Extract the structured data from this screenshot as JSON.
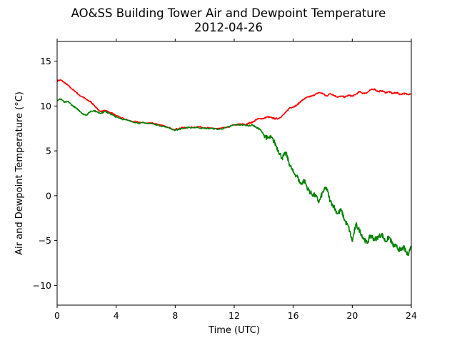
{
  "chart_data": {
    "type": "line",
    "title": "AO&SS Building Tower Air and Dewpoint Temperature",
    "subtitle": "2012-04-26",
    "xlabel": "Time (UTC)",
    "ylabel": "Air and Dewpoint Temperature (°C)",
    "xlim": [
      0,
      24
    ],
    "ylim": [
      -12.2,
      17.2
    ],
    "xticks": [
      0,
      4,
      8,
      12,
      16,
      20,
      24
    ],
    "yticks": [
      -10,
      -5,
      0,
      5,
      10,
      15
    ],
    "grid": false,
    "legend": "none",
    "series": [
      {
        "color": "#ff0000",
        "x": [
          0,
          0.25,
          0.5,
          0.75,
          1.0,
          1.25,
          1.5,
          1.75,
          2.0,
          2.25,
          2.5,
          2.75,
          3.0,
          3.25,
          3.5,
          3.75,
          4.0,
          4.5,
          5.0,
          5.5,
          6.0,
          6.5,
          7.0,
          7.5,
          8.0,
          8.5,
          9.0,
          9.5,
          10.0,
          10.5,
          11.0,
          11.5,
          12.0,
          12.5,
          12.8,
          13.0,
          13.25,
          13.5,
          13.75,
          14.0,
          14.25,
          14.5,
          14.75,
          15.0,
          15.25,
          15.5,
          15.75,
          16.0,
          16.25,
          16.5,
          16.75,
          17.0,
          17.25,
          17.5,
          17.75,
          18.0,
          18.25,
          18.5,
          18.75,
          19.0,
          19.25,
          19.5,
          19.75,
          20.0,
          20.25,
          20.5,
          20.75,
          21.0,
          21.25,
          21.5,
          21.75,
          22.0,
          22.25,
          22.5,
          22.75,
          23.0,
          23.25,
          23.5,
          23.75,
          24.0
        ],
        "y": [
          12.8,
          12.9,
          12.6,
          12.3,
          11.9,
          11.6,
          11.2,
          11.0,
          10.7,
          10.5,
          10.1,
          9.6,
          9.4,
          9.5,
          9.3,
          9.2,
          8.9,
          8.6,
          8.3,
          8.2,
          8.1,
          8.1,
          7.9,
          7.6,
          7.4,
          7.6,
          7.6,
          7.7,
          7.6,
          7.5,
          7.5,
          7.6,
          7.9,
          8.0,
          7.9,
          8.1,
          8.2,
          8.5,
          8.6,
          8.6,
          8.8,
          8.7,
          8.6,
          8.6,
          8.9,
          9.3,
          9.8,
          9.9,
          10.1,
          10.5,
          10.8,
          11.0,
          11.1,
          11.3,
          11.5,
          11.4,
          11.1,
          11.4,
          11.2,
          11.0,
          11.1,
          11.0,
          11.2,
          11.1,
          11.3,
          11.6,
          11.4,
          11.5,
          11.8,
          11.9,
          11.6,
          11.7,
          11.5,
          11.6,
          11.4,
          11.5,
          11.3,
          11.4,
          11.3,
          11.4
        ]
      },
      {
        "color": "#008000",
        "x": [
          0,
          0.25,
          0.5,
          0.75,
          1.0,
          1.25,
          1.5,
          1.75,
          2.0,
          2.25,
          2.5,
          2.75,
          3.0,
          3.25,
          3.5,
          3.75,
          4.0,
          4.5,
          5.0,
          5.5,
          6.0,
          6.5,
          7.0,
          7.5,
          8.0,
          8.5,
          9.0,
          9.5,
          10.0,
          10.5,
          11.0,
          11.5,
          12.0,
          12.5,
          13.0,
          13.25,
          13.5,
          13.75,
          14.0,
          14.25,
          14.5,
          14.75,
          15.0,
          15.25,
          15.5,
          15.75,
          16.0,
          16.25,
          16.5,
          16.75,
          17.0,
          17.25,
          17.5,
          17.75,
          18.0,
          18.25,
          18.5,
          18.75,
          19.0,
          19.25,
          19.5,
          19.75,
          20.0,
          20.25,
          20.5,
          20.75,
          21.0,
          21.25,
          21.5,
          21.75,
          22.0,
          22.25,
          22.5,
          22.75,
          23.0,
          23.25,
          23.5,
          23.75,
          24.0
        ],
        "y": [
          10.6,
          10.8,
          10.4,
          10.5,
          10.1,
          9.8,
          9.5,
          9.1,
          9.0,
          9.4,
          9.5,
          9.3,
          9.2,
          9.4,
          9.2,
          9.0,
          8.8,
          8.5,
          8.3,
          8.1,
          8.1,
          8.0,
          7.8,
          7.6,
          7.3,
          7.5,
          7.6,
          7.6,
          7.5,
          7.5,
          7.4,
          7.6,
          7.9,
          7.9,
          7.8,
          7.9,
          7.6,
          7.4,
          6.8,
          6.4,
          6.5,
          5.9,
          5.0,
          4.2,
          4.8,
          3.5,
          2.6,
          2.2,
          1.3,
          1.7,
          0.7,
          0.2,
          0.0,
          -0.7,
          0.4,
          0.9,
          -0.6,
          -1.2,
          -2.0,
          -1.6,
          -2.8,
          -3.5,
          -5.1,
          -3.2,
          -3.9,
          -4.7,
          -5.3,
          -4.4,
          -4.9,
          -4.6,
          -4.3,
          -5.1,
          -4.6,
          -5.5,
          -5.7,
          -6.1,
          -5.8,
          -6.6,
          -5.6
        ]
      }
    ]
  }
}
